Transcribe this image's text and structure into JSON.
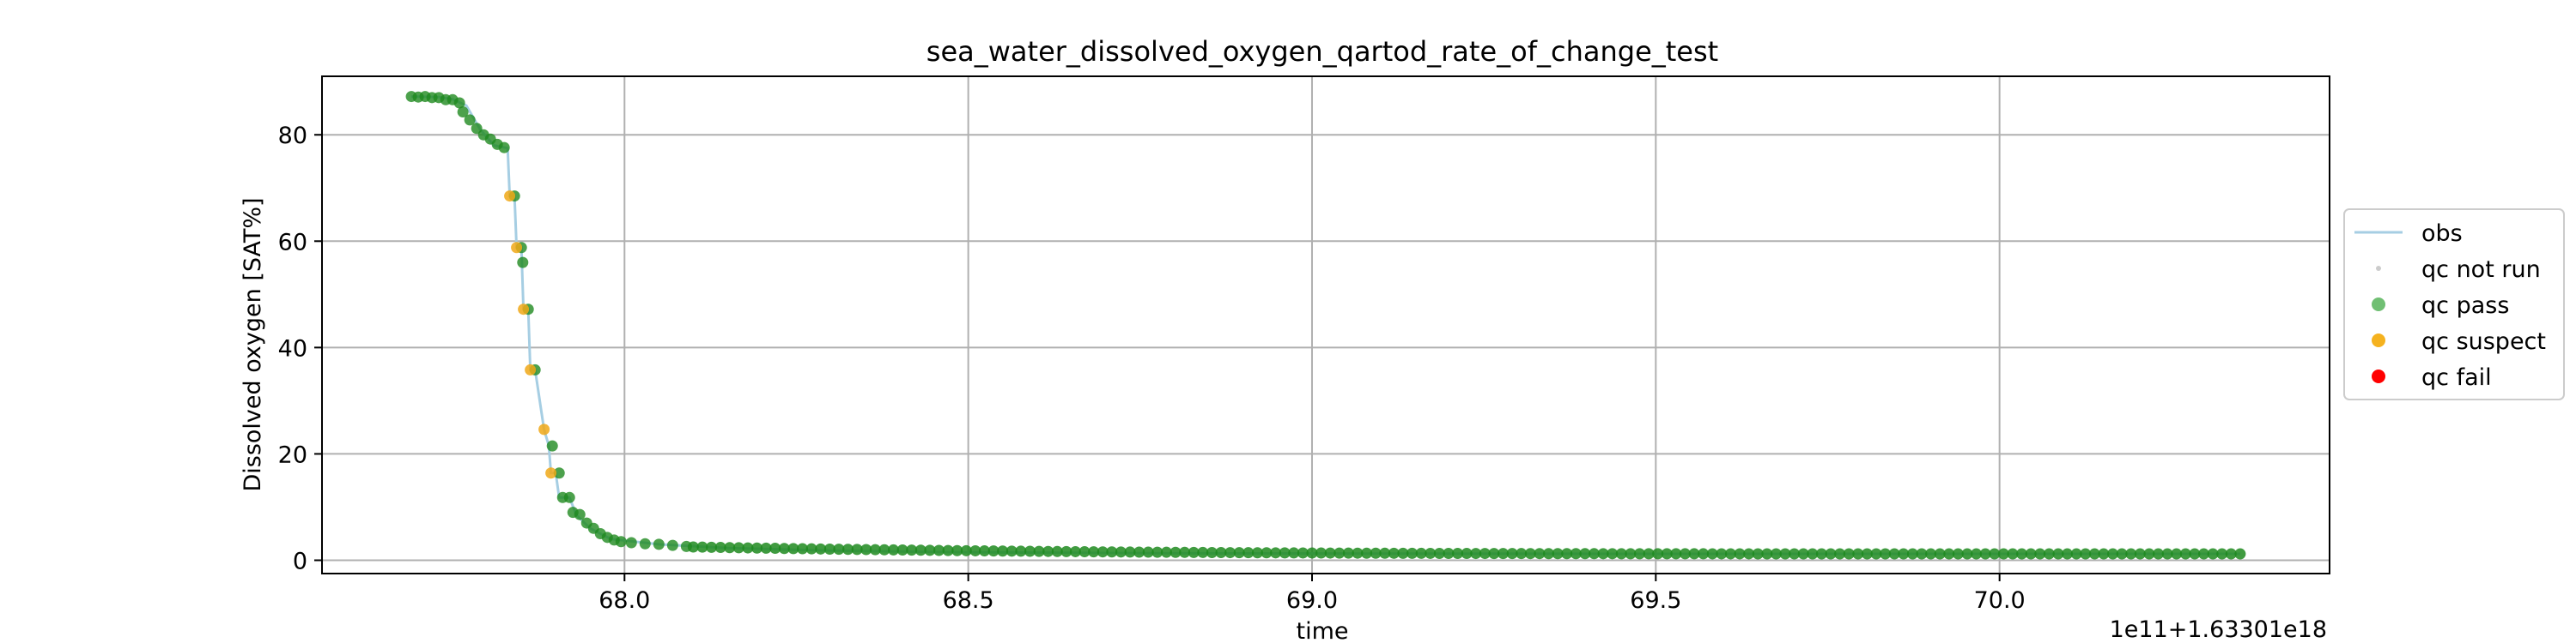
{
  "chart_data": {
    "type": "scatter",
    "title": "sea_water_dissolved_oxygen_qartod_rate_of_change_test",
    "xlabel": "time",
    "ylabel": "Dissolved oxygen [SAT%]",
    "x_offset_label": "1e11+1.63301e18",
    "xlim": [
      67.56,
      70.48
    ],
    "ylim": [
      -2.5,
      91
    ],
    "x_ticks": [
      68.0,
      68.5,
      69.0,
      69.5,
      70.0
    ],
    "x_tick_labels": [
      "68.0",
      "68.5",
      "69.0",
      "69.5",
      "70.0"
    ],
    "y_ticks": [
      0,
      20,
      40,
      60,
      80
    ],
    "y_tick_labels": [
      "0",
      "20",
      "40",
      "60",
      "80"
    ],
    "grid": true,
    "legend_position": "right, outside plot",
    "legend": [
      {
        "label": "obs",
        "marker": "line",
        "color": "#a6cee3"
      },
      {
        "label": "qc not run",
        "marker": "small-dot",
        "color": "#cccccc"
      },
      {
        "label": "qc pass",
        "marker": "dot",
        "color": "#4caf50"
      },
      {
        "label": "qc suspect",
        "marker": "dot",
        "color": "#f5b21f"
      },
      {
        "label": "qc fail",
        "marker": "dot",
        "color": "#ff0000"
      }
    ],
    "series": [
      {
        "name": "obs",
        "style": "line",
        "color": "#a6cee3",
        "points": [
          [
            67.69,
            87.2
          ],
          [
            67.73,
            87.1
          ],
          [
            67.75,
            86.7
          ],
          [
            67.77,
            85.5
          ],
          [
            67.79,
            81
          ],
          [
            67.81,
            78
          ],
          [
            67.83,
            77.5
          ],
          [
            67.833,
            68.5
          ],
          [
            67.84,
            68.5
          ],
          [
            67.843,
            58.8
          ],
          [
            67.85,
            58.8
          ],
          [
            67.853,
            47.2
          ],
          [
            67.86,
            47.2
          ],
          [
            67.863,
            35.8
          ],
          [
            67.87,
            35.8
          ],
          [
            67.883,
            24.6
          ],
          [
            67.89,
            21.5
          ],
          [
            67.893,
            16.4
          ],
          [
            67.9,
            16.4
          ],
          [
            67.905,
            11.8
          ],
          [
            67.92,
            11.8
          ],
          [
            67.93,
            8.5
          ],
          [
            67.95,
            6.0
          ],
          [
            67.98,
            4.0
          ],
          [
            68.05,
            3.0
          ],
          [
            68.15,
            2.3
          ],
          [
            68.3,
            1.8
          ],
          [
            68.5,
            1.5
          ],
          [
            68.8,
            1.3
          ],
          [
            69.5,
            1.2
          ],
          [
            70.35,
            1.2
          ]
        ]
      },
      {
        "name": "qc pass",
        "style": "dots",
        "color": "#1f8a1f",
        "points": [
          [
            67.69,
            87.2
          ],
          [
            67.7,
            87.1
          ],
          [
            67.71,
            87.2
          ],
          [
            67.72,
            87.0
          ],
          [
            67.73,
            87.0
          ],
          [
            67.74,
            86.6
          ],
          [
            67.75,
            86.6
          ],
          [
            67.76,
            86.0
          ],
          [
            67.765,
            84.3
          ],
          [
            67.775,
            82.8
          ],
          [
            67.785,
            81.2
          ],
          [
            67.795,
            80.0
          ],
          [
            67.805,
            79.2
          ],
          [
            67.815,
            78.2
          ],
          [
            67.825,
            77.6
          ],
          [
            67.84,
            68.5
          ],
          [
            67.85,
            58.8
          ],
          [
            67.852,
            56.0
          ],
          [
            67.86,
            47.2
          ],
          [
            67.87,
            35.8
          ],
          [
            67.895,
            21.5
          ],
          [
            67.905,
            16.4
          ],
          [
            67.91,
            11.8
          ],
          [
            67.92,
            11.8
          ],
          [
            67.925,
            9.0
          ],
          [
            67.935,
            8.6
          ],
          [
            67.945,
            7.0
          ],
          [
            67.955,
            6.0
          ],
          [
            67.965,
            5.0
          ],
          [
            67.975,
            4.3
          ],
          [
            67.985,
            3.8
          ],
          [
            67.995,
            3.5
          ],
          [
            68.01,
            3.3
          ],
          [
            68.03,
            3.1
          ],
          [
            68.05,
            3.0
          ],
          [
            68.07,
            2.8
          ],
          [
            68.09,
            2.6
          ]
        ]
      },
      {
        "name": "qc suspect",
        "style": "dots",
        "color": "#f0a818",
        "points": [
          [
            67.833,
            68.5
          ],
          [
            67.843,
            58.8
          ],
          [
            67.853,
            47.2
          ],
          [
            67.863,
            35.8
          ],
          [
            67.883,
            24.6
          ],
          [
            67.893,
            16.4
          ]
        ]
      },
      {
        "name": "qc pass tail",
        "style": "dense-dots",
        "color": "#1f8a1f",
        "x_range": [
          68.1,
          70.35
        ],
        "y_start": 2.5,
        "y_end": 1.2
      }
    ]
  }
}
